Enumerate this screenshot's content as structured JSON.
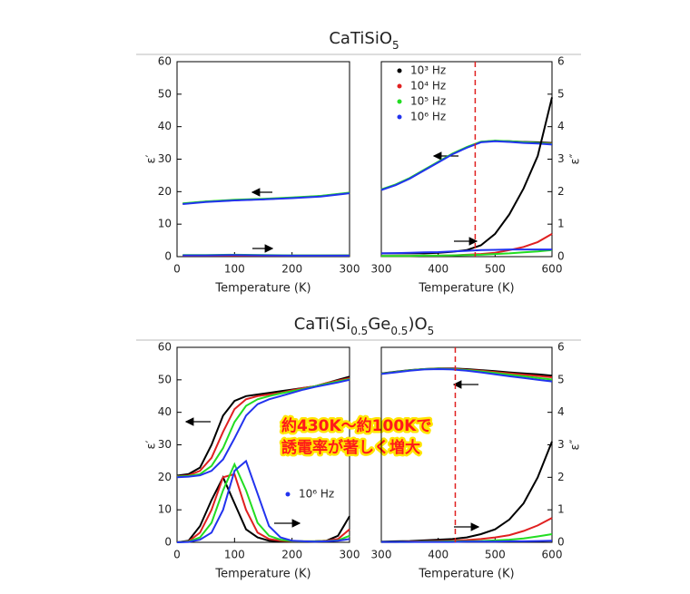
{
  "chart_data": [
    {
      "type": "line",
      "title": [
        {
          "text": "CaTiSiO"
        },
        {
          "text": "5",
          "sub": true
        }
      ],
      "xlabel": "Temperature (K)",
      "ylabel": "ε′",
      "x": [
        10,
        50,
        100,
        150,
        200,
        250,
        300
      ],
      "xlim": [
        0,
        300
      ],
      "xticks": [
        0,
        100,
        200,
        300
      ],
      "ylim": [
        0,
        60
      ],
      "yticks": [
        0,
        10,
        20,
        30,
        40,
        50,
        60
      ],
      "y2lim": [
        0,
        6
      ],
      "series": [
        {
          "color": "#000000",
          "values": [
            16.3,
            16.9,
            17.4,
            17.7,
            18.1,
            18.6,
            19.6
          ]
        },
        {
          "color": "#e02020",
          "values": [
            16.3,
            16.9,
            17.4,
            17.7,
            18.1,
            18.6,
            19.6
          ]
        },
        {
          "color": "#22dd22",
          "values": [
            16.4,
            17.0,
            17.5,
            17.8,
            18.2,
            18.7,
            19.7
          ]
        },
        {
          "color": "#2233ee",
          "values": [
            16.2,
            16.8,
            17.3,
            17.6,
            18.0,
            18.5,
            19.5
          ]
        },
        {
          "color": "#000000",
          "axis": "y2",
          "values": [
            0.03,
            0.03,
            0.03,
            0.03,
            0.03,
            0.03,
            0.04
          ]
        },
        {
          "color": "#e02020",
          "axis": "y2",
          "values": [
            0.03,
            0.03,
            0.03,
            0.03,
            0.03,
            0.03,
            0.03
          ]
        },
        {
          "color": "#22dd22",
          "axis": "y2",
          "values": [
            0.05,
            0.05,
            0.06,
            0.05,
            0.04,
            0.04,
            0.04
          ]
        },
        {
          "color": "#2233ee",
          "axis": "y2",
          "values": [
            0.04,
            0.04,
            0.05,
            0.04,
            0.03,
            0.03,
            0.03
          ]
        }
      ]
    },
    {
      "type": "line",
      "xlabel": "Temperature (K)",
      "y2label": "ε″",
      "x": [
        300,
        325,
        350,
        375,
        400,
        425,
        450,
        475,
        500,
        525,
        550,
        575,
        600
      ],
      "xlim": [
        300,
        600
      ],
      "xticks": [
        300,
        400,
        500,
        600
      ],
      "ylim": [
        0,
        60
      ],
      "y2lim": [
        0,
        6
      ],
      "y2ticks": [
        0,
        1,
        2,
        3,
        4,
        5,
        6
      ],
      "vline": 465,
      "vline_color": "#e02020",
      "series": [
        {
          "name": "10³ Hz",
          "color": "#000000",
          "values": [
            20.6,
            22.1,
            24.1,
            26.6,
            29.1,
            31.6,
            33.6,
            35.3,
            35.6,
            35.5,
            35.3,
            35.2,
            35.0
          ]
        },
        {
          "name": "10⁴ Hz",
          "color": "#e02020",
          "values": [
            20.6,
            22.1,
            24.1,
            26.6,
            29.1,
            31.6,
            33.6,
            35.3,
            35.6,
            35.4,
            35.2,
            35.0,
            34.8
          ]
        },
        {
          "name": "10⁵ Hz",
          "color": "#22dd22",
          "values": [
            20.7,
            22.2,
            24.2,
            26.7,
            29.2,
            31.7,
            33.7,
            35.4,
            35.7,
            35.5,
            35.2,
            35.0,
            34.7
          ]
        },
        {
          "name": "10⁶ Hz",
          "color": "#2233ee",
          "values": [
            20.5,
            22.0,
            24.0,
            26.5,
            29.0,
            31.5,
            33.5,
            35.2,
            35.5,
            35.3,
            35.0,
            34.8,
            34.5
          ]
        },
        {
          "color": "#000000",
          "axis": "y2",
          "values": [
            0.1,
            0.1,
            0.1,
            0.1,
            0.12,
            0.15,
            0.2,
            0.35,
            0.7,
            1.3,
            2.1,
            3.1,
            4.9
          ]
        },
        {
          "color": "#e02020",
          "axis": "y2",
          "values": [
            0.02,
            0.02,
            0.02,
            0.03,
            0.03,
            0.04,
            0.06,
            0.08,
            0.12,
            0.2,
            0.3,
            0.45,
            0.7
          ]
        },
        {
          "color": "#22dd22",
          "axis": "y2",
          "values": [
            0.02,
            0.02,
            0.02,
            0.03,
            0.03,
            0.04,
            0.05,
            0.06,
            0.08,
            0.1,
            0.13,
            0.16,
            0.2
          ]
        },
        {
          "color": "#2233ee",
          "axis": "y2",
          "values": [
            0.1,
            0.11,
            0.12,
            0.13,
            0.14,
            0.16,
            0.18,
            0.2,
            0.21,
            0.22,
            0.22,
            0.22,
            0.22
          ]
        }
      ]
    },
    {
      "type": "line",
      "title": [
        {
          "text": "CaTi(Si"
        },
        {
          "text": "0.5",
          "sub": true
        },
        {
          "text": "Ge"
        },
        {
          "text": "0.5",
          "sub": true
        },
        {
          "text": ")O"
        },
        {
          "text": "5",
          "sub": true
        }
      ],
      "xlabel": "Temperature (K)",
      "ylabel": "ε′",
      "annotation": [
        "約430K～約100Kで",
        "誘電率が著しく増大"
      ],
      "x": [
        0,
        20,
        40,
        60,
        80,
        100,
        120,
        140,
        160,
        180,
        200,
        220,
        240,
        260,
        280,
        300
      ],
      "xlim": [
        0,
        300
      ],
      "xticks": [
        0,
        100,
        200,
        300
      ],
      "ylim": [
        0,
        60
      ],
      "yticks": [
        0,
        10,
        20,
        30,
        40,
        50,
        60
      ],
      "y2lim": [
        0,
        6
      ],
      "series": [
        {
          "color": "#000000",
          "values": [
            20.5,
            21,
            23,
            30,
            39,
            43.5,
            45,
            45.5,
            46,
            46.5,
            47,
            47.5,
            48,
            49,
            50,
            51
          ]
        },
        {
          "color": "#e02020",
          "values": [
            20.3,
            20.6,
            22,
            26,
            34,
            41,
            44,
            45,
            45.5,
            46,
            46.8,
            47.5,
            48,
            49,
            49.8,
            50.5
          ]
        },
        {
          "color": "#22dd22",
          "values": [
            20.2,
            20.4,
            21,
            23.5,
            29,
            37,
            42,
            44,
            45,
            45.8,
            46.5,
            47.2,
            48,
            48.8,
            49.5,
            50.2
          ]
        },
        {
          "color": "#2233ee",
          "values": [
            20,
            20.2,
            20.6,
            22,
            25.5,
            32,
            39,
            42.5,
            44,
            45,
            46,
            47,
            47.8,
            48.5,
            49.2,
            50
          ]
        },
        {
          "color": "#000000",
          "axis": "y2",
          "values": [
            0,
            0.05,
            0.5,
            1.3,
            2.0,
            1.2,
            0.4,
            0.15,
            0.05,
            0.03,
            0.02,
            0.02,
            0.03,
            0.05,
            0.2,
            0.8
          ]
        },
        {
          "color": "#e02020",
          "axis": "y2",
          "values": [
            0,
            0.03,
            0.3,
            1.0,
            2.0,
            2.1,
            1.0,
            0.3,
            0.1,
            0.05,
            0.03,
            0.03,
            0.03,
            0.05,
            0.1,
            0.4
          ]
        },
        {
          "color": "#22dd22",
          "axis": "y2",
          "values": [
            0,
            0.02,
            0.15,
            0.6,
            1.6,
            2.4,
            1.6,
            0.6,
            0.2,
            0.08,
            0.04,
            0.03,
            0.03,
            0.04,
            0.06,
            0.2
          ]
        },
        {
          "name": "10⁶ Hz",
          "color": "#2233ee",
          "axis": "y2",
          "values": [
            0,
            0.01,
            0.08,
            0.3,
            1.0,
            2.2,
            2.5,
            1.5,
            0.5,
            0.15,
            0.05,
            0.03,
            0.02,
            0.03,
            0.05,
            0.1
          ]
        }
      ]
    },
    {
      "type": "line",
      "xlabel": "Temperature (K)",
      "y2label": "ε″",
      "x": [
        300,
        325,
        350,
        375,
        400,
        425,
        450,
        475,
        500,
        525,
        550,
        575,
        600
      ],
      "xlim": [
        300,
        600
      ],
      "xticks": [
        300,
        400,
        500,
        600
      ],
      "ylim": [
        0,
        60
      ],
      "y2lim": [
        0,
        6
      ],
      "y2ticks": [
        0,
        1,
        2,
        3,
        4,
        5,
        6
      ],
      "vline": 430,
      "vline_color": "#e02020",
      "series": [
        {
          "color": "#000000",
          "values": [
            52,
            52.5,
            53,
            53.3,
            53.5,
            53.5,
            53.3,
            53,
            52.7,
            52.3,
            52,
            51.7,
            51.3
          ]
        },
        {
          "color": "#e02020",
          "values": [
            51.9,
            52.4,
            52.9,
            53.3,
            53.4,
            53.4,
            53.1,
            52.8,
            52.4,
            52,
            51.6,
            51.2,
            50.8
          ]
        },
        {
          "color": "#22dd22",
          "values": [
            51.9,
            52.4,
            52.9,
            53.3,
            53.4,
            53.3,
            53,
            52.6,
            52.1,
            51.6,
            51.1,
            50.6,
            50.1
          ]
        },
        {
          "color": "#2233ee",
          "values": [
            51.8,
            52.3,
            52.8,
            53.2,
            53.3,
            53.2,
            52.8,
            52.3,
            51.7,
            51.1,
            50.6,
            50,
            49.5
          ]
        },
        {
          "color": "#000000",
          "axis": "y2",
          "values": [
            0.02,
            0.03,
            0.04,
            0.06,
            0.08,
            0.1,
            0.15,
            0.25,
            0.4,
            0.7,
            1.2,
            2.0,
            3.1
          ]
        },
        {
          "color": "#e02020",
          "axis": "y2",
          "values": [
            0.01,
            0.01,
            0.02,
            0.03,
            0.04,
            0.05,
            0.07,
            0.1,
            0.15,
            0.22,
            0.35,
            0.52,
            0.75
          ]
        },
        {
          "color": "#22dd22",
          "axis": "y2",
          "values": [
            0.01,
            0.01,
            0.01,
            0.02,
            0.02,
            0.03,
            0.03,
            0.04,
            0.06,
            0.08,
            0.12,
            0.18,
            0.25
          ]
        },
        {
          "color": "#2233ee",
          "axis": "y2",
          "values": [
            0.01,
            0.01,
            0.01,
            0.01,
            0.01,
            0.01,
            0.02,
            0.02,
            0.02,
            0.03,
            0.03,
            0.04,
            0.05
          ]
        }
      ]
    }
  ]
}
